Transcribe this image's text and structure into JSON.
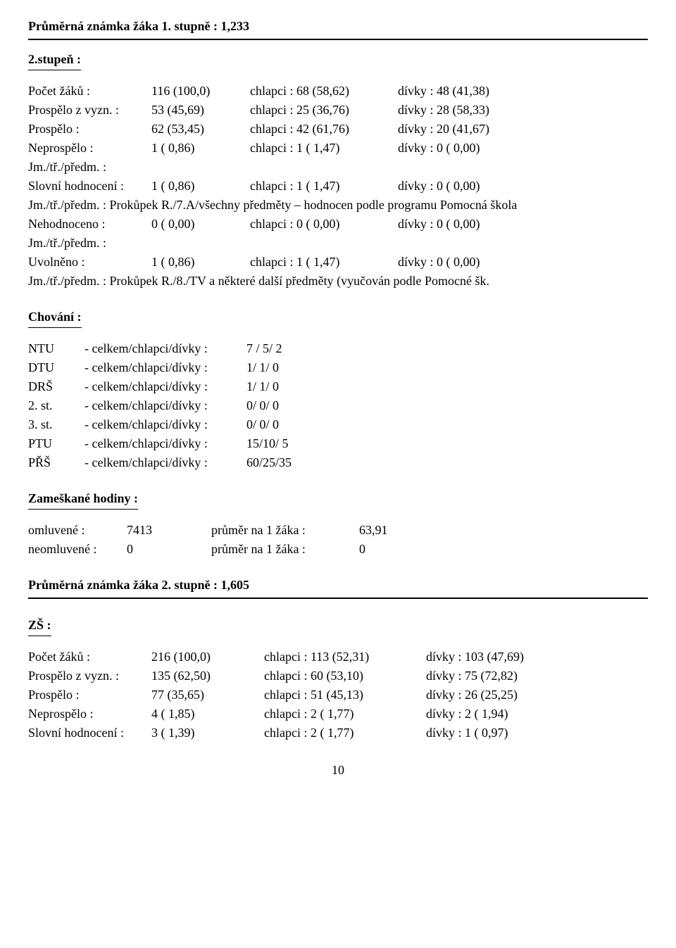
{
  "header1": "Průměrná známka žáka 1. stupně :  1,233",
  "s2": {
    "title": "2.stupeň :",
    "rows": [
      {
        "a": "Počet žáků :",
        "b": "116 (100,0)",
        "c": "chlapci :  68 (58,62)",
        "d": "dívky :   48 (41,38)"
      },
      {
        "a": "Prospělo z vyzn. :",
        "b": "53 (45,69)",
        "c": "chlapci :  25 (36,76)",
        "d": "dívky :   28 (58,33)"
      },
      {
        "a": "Prospělo :",
        "b": "62 (53,45)",
        "c": "chlapci :  42 (61,76)",
        "d": "dívky :   20 (41,67)"
      },
      {
        "a": "Neprospělo :",
        "b": "1 (  0,86)",
        "c": "chlapci :    1 (  1,47)",
        "d": "dívky :     0 (  0,00)"
      }
    ],
    "note1": "Jm./tř./předm. :",
    "slovni": {
      "a": "Slovní hodnocení :",
      "b": "1 (  0,86)",
      "c": "chlapci :    1 (  1,47)",
      "d": "dívky :     0 (  0,00)"
    },
    "note2": "Jm./tř./předm. : Prokůpek R./7.A/všechny předměty – hodnocen podle programu Pomocná škola",
    "nehod": {
      "a": "Nehodnoceno :",
      "b": "0 (  0,00)",
      "c": "chlapci :    0 (  0,00)",
      "d": "dívky :     0 (  0,00)"
    },
    "note3": "Jm./tř./předm. :",
    "uvol": {
      "a": "Uvolněno :",
      "b": "1 (  0,86)",
      "c": "chlapci :    1 (  1,47)",
      "d": "dívky :     0 (  0,00)"
    },
    "note4": "Jm./tř./předm. :  Prokůpek R./8./TV a některé další předměty (vyučován podle Pomocné šk."
  },
  "chov": {
    "title": "Chování :",
    "rows": [
      {
        "a": "NTU",
        "b": "-    celkem/chlapci/dívky  :",
        "c": "7 / 5/  2"
      },
      {
        "a": "DTU",
        "b": "-    celkem/chlapci/dívky  :",
        "c": "1/  1/  0"
      },
      {
        "a": "DRŠ",
        "b": "-    celkem/chlapci/dívky  :",
        "c": "1/  1/  0"
      },
      {
        "a": "2. st.",
        "b": "-    celkem/chlapci/dívky  :",
        "c": "0/  0/  0"
      },
      {
        "a": "3. st.",
        "b": "-    celkem/chlapci/dívky  :",
        "c": "0/  0/  0"
      },
      {
        "a": "PTU",
        "b": "-    celkem/chlapci/dívky  :",
        "c": "15/10/  5"
      },
      {
        "a": "PŘŠ",
        "b": "-    celkem/chlapci/dívky  :",
        "c": "60/25/35"
      }
    ]
  },
  "zh": {
    "title": "Zameškané hodiny :",
    "rows": [
      {
        "a": "omluvené :",
        "b": "7413",
        "c": "průměr na  1 žáka :",
        "d": "63,91"
      },
      {
        "a": "neomluvené :",
        "b": "0",
        "c": "průměr na 1 žáka :",
        "d": "0"
      }
    ]
  },
  "header2": "Průměrná známka žáka 2. stupně :  1,605",
  "zs": {
    "title": "ZŠ :",
    "rows": [
      {
        "a": "Počet žáků :",
        "b": "216 (100,0)",
        "c": "chlapci : 113 (52,31)",
        "d": "dívky :  103 (47,69)"
      },
      {
        "a": "Prospělo z vyzn. :",
        "b": "135 (62,50)",
        "c": "chlapci :  60 (53,10)",
        "d": "dívky :   75 (72,82)"
      },
      {
        "a": "Prospělo :",
        "b": "77 (35,65)",
        "c": "chlapci :  51 (45,13)",
        "d": "dívky :   26 (25,25)"
      },
      {
        "a": "Neprospělo :",
        "b": "4 (  1,85)",
        "c": "chlapci :    2 (  1,77)",
        "d": "dívky :     2 (  1,94)"
      },
      {
        "a": "Slovní hodnocení :",
        "b": "3 (  1,39)",
        "c": "chlapci :    2 (  1,77)",
        "d": "dívky :     1 (  0,97)"
      }
    ]
  },
  "pagenum": "10"
}
